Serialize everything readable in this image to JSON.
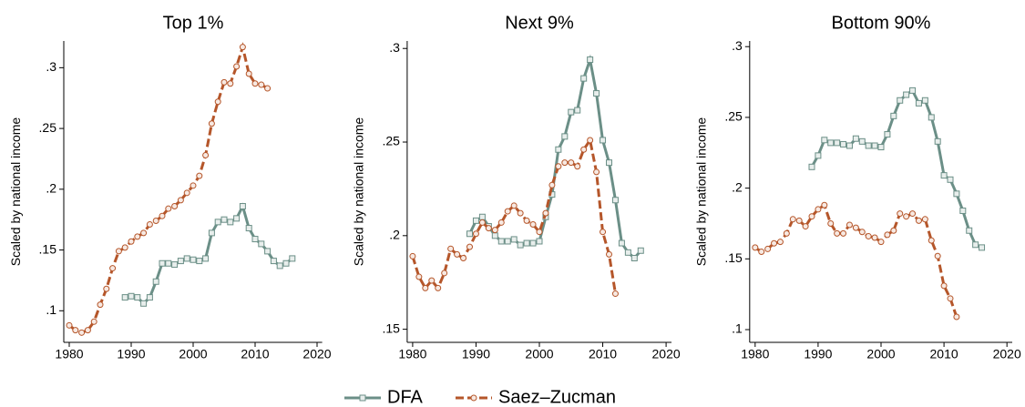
{
  "chart_data": [
    {
      "type": "line",
      "title": "Top 1%",
      "y_label": "Scaled by national income",
      "x": [
        1980,
        1981,
        1982,
        1983,
        1984,
        1985,
        1986,
        1987,
        1988,
        1989,
        1990,
        1991,
        1992,
        1993,
        1994,
        1995,
        1996,
        1997,
        1998,
        1999,
        2000,
        2001,
        2002,
        2003,
        2004,
        2005,
        2006,
        2007,
        2008,
        2009,
        2010,
        2011,
        2012,
        2013,
        2014,
        2015,
        2016
      ],
      "xlim": [
        1978,
        2022
      ],
      "xticks": [
        1980,
        1990,
        2000,
        2010,
        2020
      ],
      "ylim": [
        0.074,
        0.322
      ],
      "yticks": [
        {
          "value": 0.1,
          "label": ".1"
        },
        {
          "value": 0.15,
          "label": ".15"
        },
        {
          "value": 0.2,
          "label": ".2"
        },
        {
          "value": 0.25,
          "label": ".25"
        },
        {
          "value": 0.3,
          "label": ".3"
        }
      ],
      "series": [
        {
          "name": "DFA",
          "color": "#6b8f87",
          "style": "solid",
          "marker": "square",
          "values": [
            null,
            null,
            null,
            null,
            null,
            null,
            null,
            null,
            null,
            0.111,
            0.112,
            0.111,
            0.106,
            0.111,
            0.124,
            0.139,
            0.139,
            0.138,
            0.141,
            0.143,
            0.142,
            0.141,
            0.143,
            0.164,
            0.173,
            0.175,
            0.173,
            0.176,
            0.186,
            0.168,
            0.159,
            0.155,
            0.149,
            0.141,
            0.137,
            0.139,
            0.143
          ]
        },
        {
          "name": "Saez–Zucman",
          "color": "#b5562a",
          "style": "dashed",
          "marker": "circle",
          "values": [
            0.088,
            0.084,
            0.082,
            0.084,
            0.091,
            0.105,
            0.118,
            0.135,
            0.149,
            0.152,
            0.157,
            0.161,
            0.164,
            0.171,
            0.174,
            0.178,
            0.184,
            0.186,
            0.191,
            0.197,
            0.203,
            0.211,
            0.228,
            0.254,
            0.272,
            0.288,
            0.287,
            0.301,
            0.317,
            0.295,
            0.287,
            0.286,
            0.283,
            null,
            null,
            null,
            null
          ]
        }
      ]
    },
    {
      "type": "line",
      "title": "Next 9%",
      "y_label": "Scaled by national income",
      "x": [
        1980,
        1981,
        1982,
        1983,
        1984,
        1985,
        1986,
        1987,
        1988,
        1989,
        1990,
        1991,
        1992,
        1993,
        1994,
        1995,
        1996,
        1997,
        1998,
        1999,
        2000,
        2001,
        2002,
        2003,
        2004,
        2005,
        2006,
        2007,
        2008,
        2009,
        2010,
        2011,
        2012,
        2013,
        2014,
        2015,
        2016
      ],
      "xlim": [
        1978,
        2022
      ],
      "xticks": [
        1980,
        1990,
        2000,
        2010,
        2020
      ],
      "ylim": [
        0.143,
        0.304
      ],
      "yticks": [
        {
          "value": 0.15,
          "label": ".15"
        },
        {
          "value": 0.2,
          "label": ".2"
        },
        {
          "value": 0.25,
          "label": ".25"
        },
        {
          "value": 0.3,
          "label": ".3"
        }
      ],
      "series": [
        {
          "name": "DFA",
          "color": "#6b8f87",
          "style": "solid",
          "marker": "square",
          "values": [
            null,
            null,
            null,
            null,
            null,
            null,
            null,
            null,
            null,
            0.201,
            0.208,
            0.21,
            0.205,
            0.2,
            0.197,
            0.197,
            0.198,
            0.195,
            0.196,
            0.196,
            0.197,
            0.21,
            0.222,
            0.246,
            0.253,
            0.266,
            0.267,
            0.284,
            0.294,
            0.276,
            0.251,
            0.239,
            0.219,
            0.196,
            0.191,
            0.188,
            0.192
          ]
        },
        {
          "name": "Saez–Zucman",
          "color": "#b5562a",
          "style": "dashed",
          "marker": "circle",
          "values": [
            0.189,
            0.178,
            0.172,
            0.176,
            0.172,
            0.18,
            0.193,
            0.19,
            0.188,
            0.194,
            0.201,
            0.207,
            0.204,
            0.203,
            0.207,
            0.213,
            0.216,
            0.212,
            0.208,
            0.206,
            0.202,
            0.212,
            0.227,
            0.237,
            0.239,
            0.239,
            0.237,
            0.246,
            0.251,
            0.234,
            0.202,
            0.19,
            0.169,
            null,
            null,
            null,
            null
          ]
        }
      ]
    },
    {
      "type": "line",
      "title": "Bottom 90%",
      "y_label": "Scaled by national income",
      "x": [
        1980,
        1981,
        1982,
        1983,
        1984,
        1985,
        1986,
        1987,
        1988,
        1989,
        1990,
        1991,
        1992,
        1993,
        1994,
        1995,
        1996,
        1997,
        1998,
        1999,
        2000,
        2001,
        2002,
        2003,
        2004,
        2005,
        2006,
        2007,
        2008,
        2009,
        2010,
        2011,
        2012,
        2013,
        2014,
        2015,
        2016
      ],
      "xlim": [
        1978,
        2022
      ],
      "xticks": [
        1980,
        1990,
        2000,
        2010,
        2020
      ],
      "ylim": [
        0.091,
        0.304
      ],
      "yticks": [
        {
          "value": 0.1,
          "label": ".1"
        },
        {
          "value": 0.15,
          "label": ".15"
        },
        {
          "value": 0.2,
          "label": ".2"
        },
        {
          "value": 0.25,
          "label": ".25"
        },
        {
          "value": 0.3,
          "label": ".3"
        }
      ],
      "series": [
        {
          "name": "DFA",
          "color": "#6b8f87",
          "style": "solid",
          "marker": "square",
          "values": [
            null,
            null,
            null,
            null,
            null,
            null,
            null,
            null,
            null,
            0.215,
            0.223,
            0.234,
            0.232,
            0.232,
            0.231,
            0.23,
            0.235,
            0.233,
            0.23,
            0.23,
            0.229,
            0.238,
            0.251,
            0.262,
            0.266,
            0.269,
            0.26,
            0.262,
            0.25,
            0.233,
            0.209,
            0.206,
            0.196,
            0.184,
            0.17,
            0.16,
            0.158
          ]
        },
        {
          "name": "Saez–Zucman",
          "color": "#b5562a",
          "style": "dashed",
          "marker": "circle",
          "values": [
            0.158,
            0.155,
            0.157,
            0.161,
            0.162,
            0.168,
            0.178,
            0.177,
            0.173,
            0.18,
            0.185,
            0.188,
            0.175,
            0.168,
            0.168,
            0.174,
            0.172,
            0.169,
            0.166,
            0.165,
            0.162,
            0.167,
            0.17,
            0.182,
            0.18,
            0.182,
            0.177,
            0.178,
            0.163,
            0.152,
            0.131,
            0.122,
            0.109,
            null,
            null,
            null,
            null
          ]
        }
      ]
    }
  ]
}
